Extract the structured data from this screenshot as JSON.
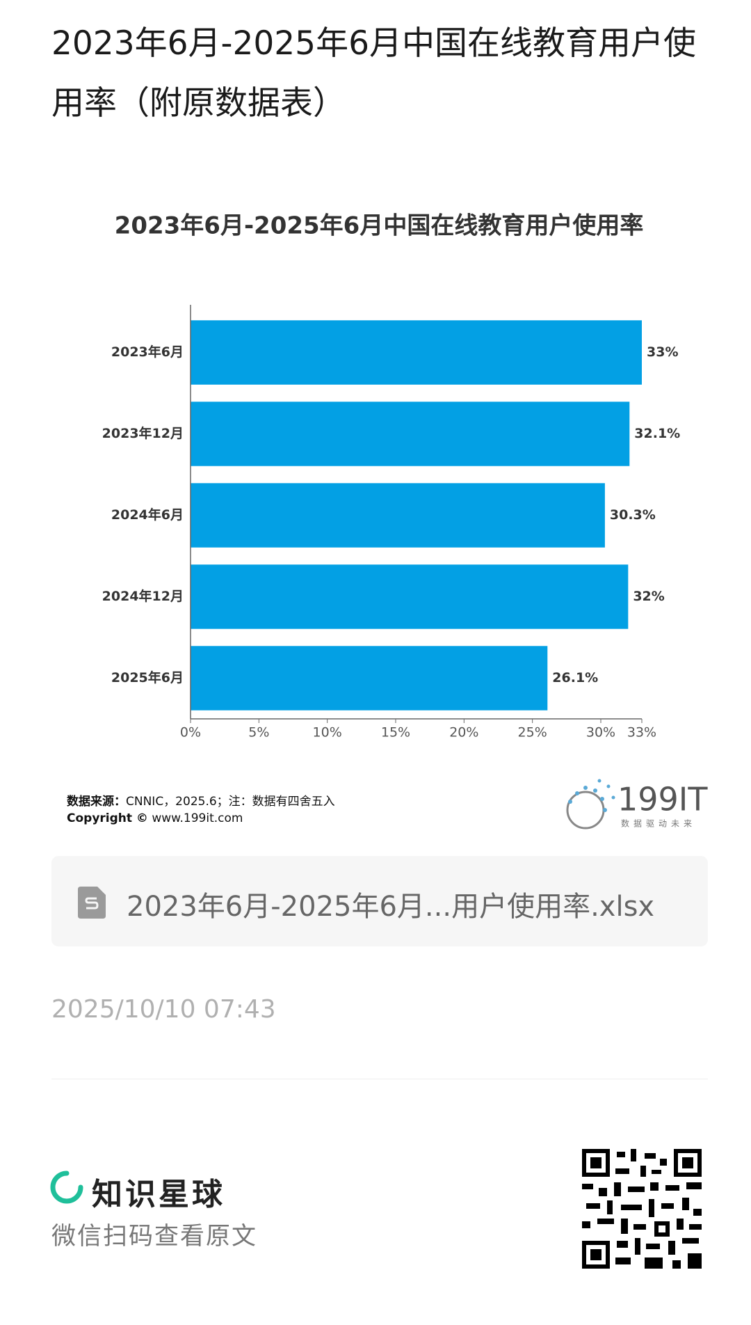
{
  "header": {
    "title": "2023年6月-2025年6月中国在线教育用户使用率（附原数据表）"
  },
  "chart_data": {
    "type": "bar",
    "orientation": "horizontal",
    "title": "2023年6月-2025年6月中国在线教育用户使用率",
    "categories": [
      "2023年6月",
      "2023年12月",
      "2024年6月",
      "2024年12月",
      "2025年6月"
    ],
    "values": [
      33,
      32.1,
      30.3,
      32,
      26.1
    ],
    "value_labels": [
      "33%",
      "32.1%",
      "30.3%",
      "32%",
      "26.1%"
    ],
    "color": "#03a0e4",
    "xlim": [
      0,
      33
    ],
    "xticks": [
      {
        "value": 0,
        "label": "0%"
      },
      {
        "value": 5,
        "label": "5%"
      },
      {
        "value": 10,
        "label": "10%"
      },
      {
        "value": 15,
        "label": "15%"
      },
      {
        "value": 20,
        "label": "20%"
      },
      {
        "value": 25,
        "label": "25%"
      },
      {
        "value": 30,
        "label": "30%"
      },
      {
        "value": 33,
        "label": "33%"
      }
    ],
    "grid": false
  },
  "source": {
    "label": "数据来源：",
    "text": "CNNIC，2025.6；注：数据有四舍五入"
  },
  "copyright": {
    "label": "Copyright ©",
    "text": "www.199it.com"
  },
  "logo": {
    "text": "199IT",
    "slogan": "数据驱动未来"
  },
  "attachment": {
    "filename": "2023年6月-2025年6月...用户使用率.xlsx"
  },
  "timestamp": "2025/10/10 07:43",
  "footer": {
    "brand": "知识星球",
    "hint": "微信扫码查看原文"
  }
}
